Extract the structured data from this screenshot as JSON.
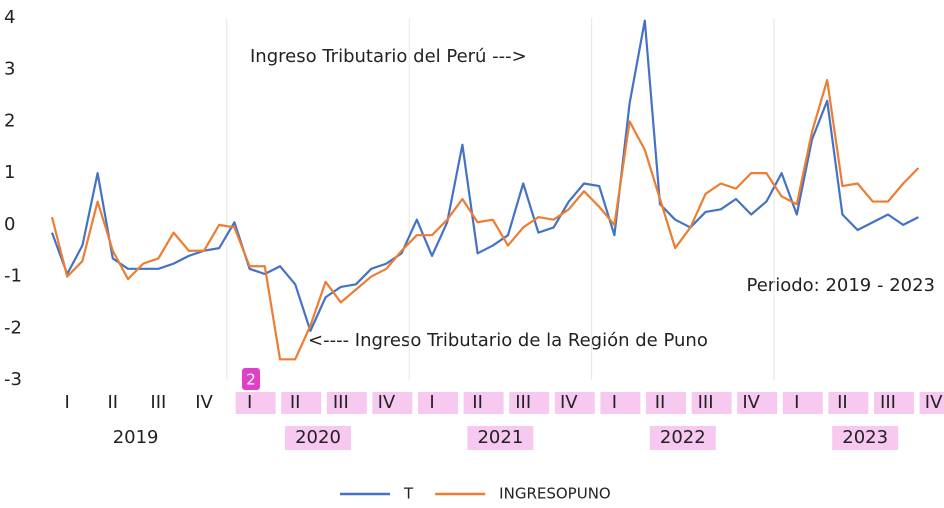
{
  "chart_data": {
    "type": "line",
    "annotations": [
      "Ingreso Tributario del Perú --->",
      "<---- Ingreso Tributario de la Región de Puno",
      "Periodo: 2019 - 2023"
    ],
    "badge": "2",
    "categories": [
      null,
      "I",
      null,
      null,
      "II",
      null,
      null,
      "III",
      null,
      null,
      "IV",
      null,
      null,
      "I",
      null,
      null,
      "II",
      null,
      null,
      "III",
      null,
      null,
      "IV",
      null,
      null,
      "I",
      null,
      null,
      "II",
      null,
      null,
      "III",
      null,
      null,
      "IV",
      null,
      null,
      "I",
      null,
      null,
      "II",
      null,
      null,
      "III",
      null,
      null,
      "IV",
      null,
      null,
      "I",
      null,
      null,
      "II",
      null,
      null,
      "III",
      null,
      null,
      "IV",
      null
    ],
    "years": [
      "2019",
      "2020",
      "2021",
      "2022",
      "2023"
    ],
    "series": [
      {
        "name": "T",
        "color": "#4472c4",
        "values": [
          -0.15,
          -0.95,
          -0.4,
          1.0,
          -0.65,
          -0.85,
          -0.85,
          -0.85,
          -0.75,
          -0.6,
          -0.5,
          -0.45,
          0.05,
          -0.85,
          -0.95,
          -0.8,
          -1.15,
          -2.05,
          -1.4,
          -1.2,
          -1.15,
          -0.85,
          -0.75,
          -0.55,
          0.1,
          -0.6,
          0.05,
          1.55,
          -0.55,
          -0.4,
          -0.2,
          0.8,
          -0.15,
          -0.05,
          0.45,
          0.8,
          0.75,
          -0.2,
          2.35,
          3.95,
          0.4,
          0.1,
          -0.05,
          0.25,
          0.3,
          0.5,
          0.2,
          0.45,
          1.0,
          0.2,
          1.65,
          2.4,
          0.2,
          -0.1,
          0.05,
          0.2,
          0.0,
          0.15,
          null,
          null
        ]
      },
      {
        "name": "INGRESOPUNO",
        "color": "#ed7d31",
        "values": [
          0.15,
          -1.0,
          -0.7,
          0.45,
          -0.5,
          -1.05,
          -0.75,
          -0.65,
          -0.15,
          -0.5,
          -0.5,
          0.0,
          -0.05,
          -0.8,
          -0.8,
          -2.6,
          -2.6,
          -1.95,
          -1.1,
          -1.5,
          -1.25,
          -1.0,
          -0.85,
          -0.5,
          -0.2,
          -0.2,
          0.1,
          0.5,
          0.05,
          0.1,
          -0.4,
          -0.05,
          0.15,
          0.1,
          0.3,
          0.65,
          0.35,
          0.0,
          2.0,
          1.45,
          0.5,
          -0.45,
          -0.05,
          0.6,
          0.8,
          0.7,
          1.0,
          1.0,
          0.55,
          0.4,
          1.8,
          2.8,
          0.75,
          0.8,
          0.45,
          0.45,
          0.8,
          1.1,
          null,
          null
        ]
      }
    ],
    "ylim": [
      -3,
      4
    ],
    "yticks": [
      -3,
      -2,
      -1,
      0,
      1,
      2,
      3,
      4
    ],
    "legend": "bottom"
  }
}
